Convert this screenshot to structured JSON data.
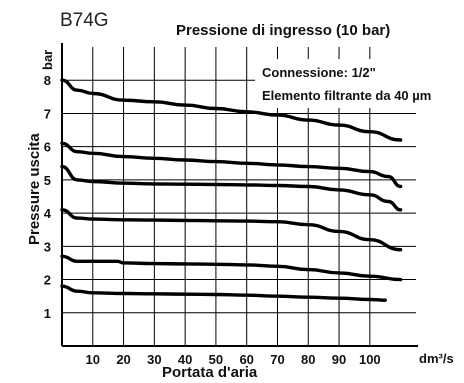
{
  "header": {
    "model": "B74G",
    "title": "Pressione di ingresso (10 bar)"
  },
  "notes": {
    "line1": "Connessione: 1/2\"",
    "line2": "Elemento filtrante da 40 µm"
  },
  "chart_data": {
    "type": "line",
    "title": "Pressione di ingresso (10 bar)",
    "xlabel": "Portata d'aria",
    "x_unit": "dm³/s",
    "ylabel": "Pressure uscita",
    "y_unit": "bar",
    "xlim": [
      0,
      115
    ],
    "ylim": [
      0,
      9
    ],
    "x_ticks": [
      10,
      20,
      30,
      40,
      50,
      60,
      70,
      80,
      90,
      100
    ],
    "y_ticks": [
      1,
      2,
      3,
      4,
      5,
      6,
      7,
      8
    ],
    "grid": true,
    "series": [
      {
        "x": [
          0,
          5,
          10,
          20,
          30,
          40,
          50,
          60,
          70,
          80,
          90,
          100,
          110
        ],
        "y": [
          8.0,
          7.7,
          7.6,
          7.4,
          7.35,
          7.25,
          7.15,
          7.05,
          6.95,
          6.8,
          6.65,
          6.45,
          6.2
        ]
      },
      {
        "x": [
          0,
          5,
          10,
          20,
          30,
          40,
          50,
          60,
          70,
          80,
          90,
          100,
          106,
          110
        ],
        "y": [
          6.1,
          5.85,
          5.8,
          5.7,
          5.65,
          5.6,
          5.55,
          5.5,
          5.45,
          5.4,
          5.35,
          5.25,
          5.1,
          4.8
        ]
      },
      {
        "x": [
          0,
          5,
          10,
          20,
          30,
          40,
          50,
          60,
          70,
          80,
          90,
          100,
          106,
          110
        ],
        "y": [
          5.4,
          5.0,
          4.95,
          4.9,
          4.88,
          4.87,
          4.86,
          4.85,
          4.83,
          4.8,
          4.7,
          4.55,
          4.35,
          4.1
        ]
      },
      {
        "x": [
          0,
          5,
          10,
          20,
          30,
          40,
          50,
          60,
          70,
          80,
          90,
          100,
          110
        ],
        "y": [
          4.1,
          3.85,
          3.82,
          3.8,
          3.79,
          3.78,
          3.77,
          3.76,
          3.74,
          3.65,
          3.45,
          3.2,
          2.9
        ]
      },
      {
        "x": [
          0,
          5,
          10,
          18,
          20,
          30,
          40,
          50,
          60,
          70,
          80,
          90,
          100,
          110
        ],
        "y": [
          2.7,
          2.55,
          2.55,
          2.55,
          2.5,
          2.48,
          2.47,
          2.46,
          2.44,
          2.4,
          2.3,
          2.2,
          2.1,
          2.0
        ]
      },
      {
        "x": [
          0,
          5,
          10,
          20,
          30,
          40,
          50,
          60,
          70,
          80,
          90,
          100,
          105
        ],
        "y": [
          1.8,
          1.65,
          1.6,
          1.58,
          1.57,
          1.56,
          1.55,
          1.53,
          1.5,
          1.47,
          1.44,
          1.4,
          1.38
        ]
      }
    ]
  }
}
